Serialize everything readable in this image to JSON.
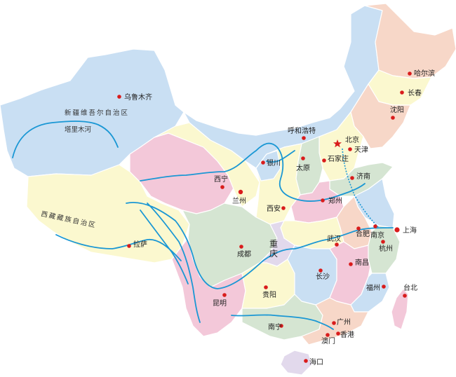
{
  "cities": {
    "urumqi": "乌鲁木齐",
    "harbin": "哈尔滨",
    "changchun": "长春",
    "shenyang": "沈阳",
    "hohhot": "呼和浩特",
    "beijing": "北京",
    "tianjin": "天津",
    "shijiazhuang": "石家庄",
    "taiyuan": "太原",
    "jinan": "济南",
    "yinchuan": "银川",
    "xining": "西宁",
    "lanzhou": "兰州",
    "xian": "西安",
    "zhengzhou": "郑州",
    "lhasa": "拉萨",
    "chengdu": "成都",
    "chongqing": "重庆",
    "wuhan": "武汉",
    "hefei": "合肥",
    "nanjing": "南京",
    "shanghai": "上海",
    "hangzhou": "杭州",
    "nanchang": "南昌",
    "changsha": "长沙",
    "guiyang": "贵阳",
    "kunming": "昆明",
    "fuzhou": "福州",
    "taipei": "台北",
    "nanning": "南宁",
    "guangzhou": "广州",
    "hongkong": "香港",
    "macau": "澳门",
    "haikou": "海口"
  },
  "regions": {
    "xinjiang": "新疆维吾尔自治区",
    "tibet": "西藏藏族自治区"
  },
  "rivers": {
    "tarim": "塔里木河"
  },
  "colors": {
    "pink": "#f3c8d9",
    "blue": "#c9dff3",
    "yellow": "#fbf8cf",
    "green": "#d5e5d2",
    "peach": "#f7d7c8",
    "lavender": "#e2d9ec",
    "river": "#1a97d4",
    "city_dot": "#d91c1c",
    "border": "#ffffff"
  }
}
